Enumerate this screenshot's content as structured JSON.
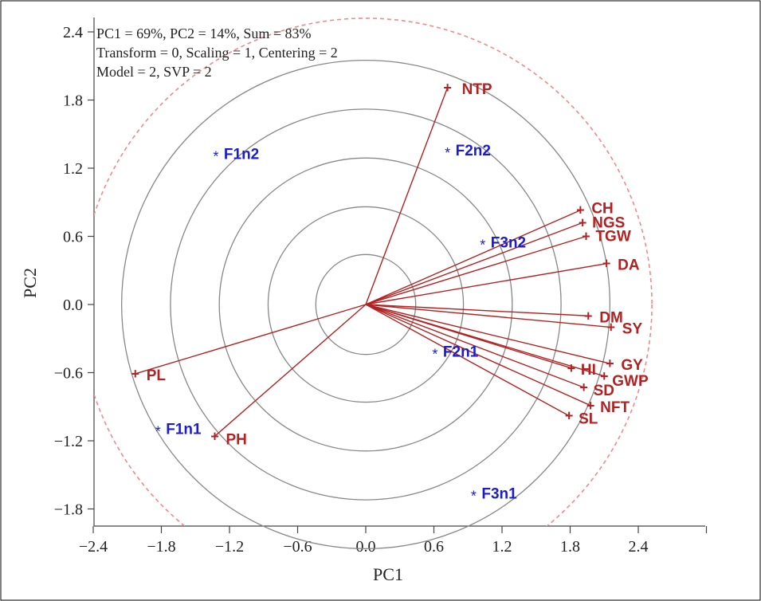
{
  "chart_data": {
    "type": "scatter",
    "title": "",
    "xlabel": "PC1",
    "ylabel": "PC2",
    "xlim": [
      -2.4,
      3.0
    ],
    "ylim": [
      -2.0,
      2.4
    ],
    "x_ticks": [
      -2.4,
      -1.8,
      -1.2,
      -0.6,
      0.0,
      0.6,
      1.2,
      1.8,
      2.4
    ],
    "x_tick_labels": [
      "−2.4",
      "−1.8",
      "−1.2",
      "−0.6",
      "0.0",
      "0.6",
      "1.2",
      "1.8",
      "2.4"
    ],
    "y_ticks": [
      2.4,
      1.8,
      1.2,
      0.6,
      0.0,
      -0.6,
      -1.2,
      -1.8
    ],
    "y_tick_labels": [
      "2.4",
      "1.8",
      "1.2",
      "0.6",
      "0.0",
      "−0.6",
      "−1.2",
      "−1.8"
    ],
    "annotation_lines": [
      "PC1 = 69%, PC2 = 14%, Sum = 83%",
      "Transform = 0, Scaling = 1, Centering = 2",
      "Model = 2, SVP = 2"
    ],
    "concentric_circle_radii": [
      0.44,
      0.86,
      1.29,
      1.72,
      2.15
    ],
    "outer_dashed_circle_radius": 2.52,
    "grid": false,
    "colors": {
      "trait": "#b22222",
      "entry": "#1c1ccc",
      "circle": "#888888",
      "dashed_circle": "#f08a8a",
      "axis": "#444444"
    },
    "traits": [
      {
        "name": "NTP",
        "x": 0.72,
        "y": 1.91
      },
      {
        "name": "CH",
        "x": 1.89,
        "y": 0.83
      },
      {
        "name": "NGS",
        "x": 1.91,
        "y": 0.72
      },
      {
        "name": "TGW",
        "x": 1.94,
        "y": 0.6
      },
      {
        "name": "DA",
        "x": 2.12,
        "y": 0.36
      },
      {
        "name": "DM",
        "x": 1.96,
        "y": -0.1
      },
      {
        "name": "SY",
        "x": 2.16,
        "y": -0.2
      },
      {
        "name": "GY",
        "x": 2.15,
        "y": -0.52
      },
      {
        "name": "HI",
        "x": 1.81,
        "y": -0.56
      },
      {
        "name": "GWP",
        "x": 2.1,
        "y": -0.63
      },
      {
        "name": "SD",
        "x": 1.92,
        "y": -0.73
      },
      {
        "name": "NFT",
        "x": 1.98,
        "y": -0.89
      },
      {
        "name": "SL",
        "x": 1.79,
        "y": -0.98
      },
      {
        "name": "PL",
        "x": -2.03,
        "y": -0.61
      },
      {
        "name": "PH",
        "x": -1.33,
        "y": -1.16
      }
    ],
    "entries": [
      {
        "name": "F1n2",
        "x": -1.32,
        "y": 1.33
      },
      {
        "name": "F2n2",
        "x": 0.72,
        "y": 1.36
      },
      {
        "name": "F3n2",
        "x": 1.03,
        "y": 0.55
      },
      {
        "name": "F2n1",
        "x": 0.61,
        "y": -0.41
      },
      {
        "name": "F1n1",
        "x": -1.83,
        "y": -1.09
      },
      {
        "name": "F3n1",
        "x": 0.95,
        "y": -1.66
      }
    ]
  }
}
